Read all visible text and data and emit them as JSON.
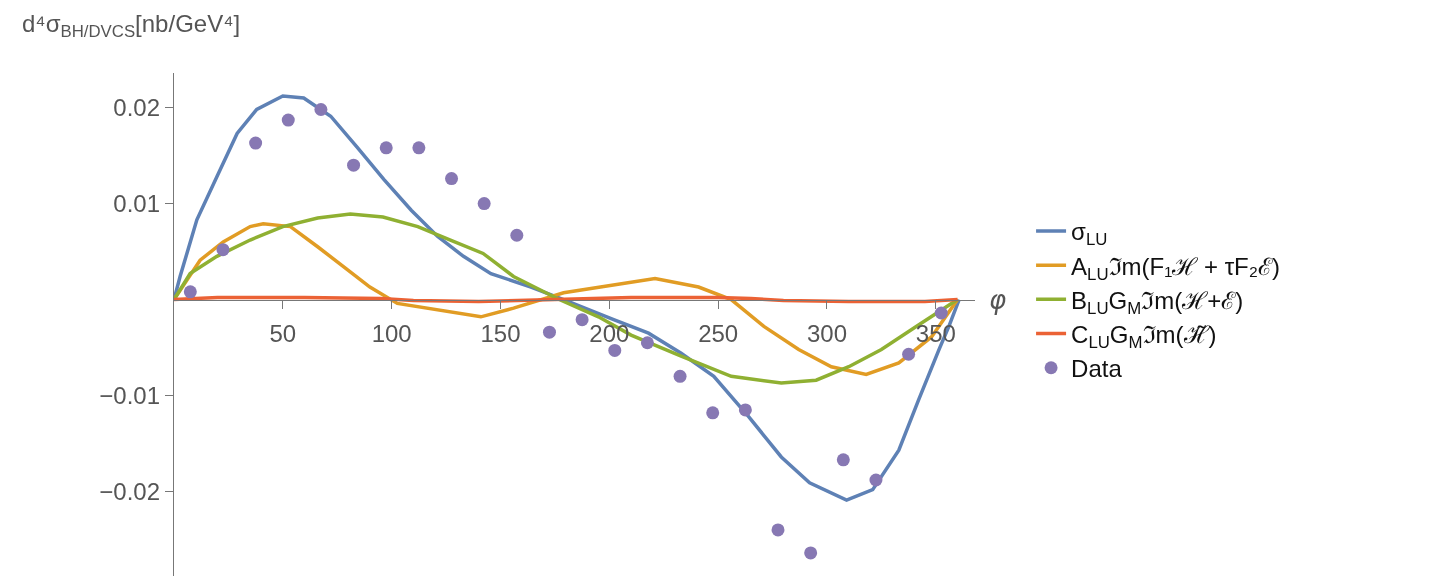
{
  "chart_data": {
    "type": "line",
    "xlabel": "φ",
    "ylabel": "d⁴σ$_{BH/DVCS}$[nb/GeV⁴]",
    "xlim": [
      0,
      368
    ],
    "ylim": [
      -0.0288,
      0.0236
    ],
    "xticks": [
      50,
      100,
      150,
      200,
      250,
      300,
      350
    ],
    "yticks": [
      {
        "value": -0.02,
        "label": "−0.02"
      },
      {
        "value": -0.01,
        "label": "−0.01"
      },
      0.01,
      0.02
    ],
    "grid": false,
    "legend": "right",
    "series": [
      {
        "name": "σ$_{LU}$",
        "color": "#5e81b5",
        "x": [
          0,
          2.8,
          10.5,
          19.7,
          29,
          38,
          50,
          59.6,
          72,
          84,
          96.5,
          109,
          121,
          133,
          145.6,
          164,
          179,
          202,
          218,
          233,
          248,
          264,
          279,
          292,
          309,
          321,
          333,
          342,
          351.5,
          356,
          360.7
        ],
        "values": [
          0,
          0.0024,
          0.0083,
          0.0128,
          0.0173,
          0.0198,
          0.0212,
          0.021,
          0.0191,
          0.0159,
          0.0125,
          0.0093,
          0.0066,
          0.0045,
          0.0027,
          0.0013,
          0,
          -0.0021,
          -0.0035,
          -0.0056,
          -0.008,
          -0.0122,
          -0.0164,
          -0.0191,
          -0.0209,
          -0.0198,
          -0.0157,
          -0.0105,
          -0.0052,
          -0.0028,
          0
        ]
      },
      {
        "name": "A$_{LU}$ℑm(F₁ℋ + τF₂ℰ)",
        "color": "#e19c24",
        "x": [
          0,
          12,
          22.6,
          35,
          41,
          53.5,
          66,
          78,
          90,
          102.6,
          141,
          156,
          179,
          221,
          241,
          256,
          271,
          287,
          302,
          318,
          333,
          348,
          360
        ],
        "values": [
          0,
          0.0041,
          0.006,
          0.0076,
          0.0079,
          0.0076,
          0.0055,
          0.0034,
          0.0013,
          -0.0004,
          -0.0018,
          -0.0009,
          0.0007,
          0.0022,
          0.0013,
          0,
          -0.0028,
          -0.0052,
          -0.007,
          -0.0078,
          -0.0066,
          -0.0039,
          0
        ]
      },
      {
        "name": "B$_{LU}$G$_{M}$ℑm(ℋ+ℰ)",
        "color": "#8fb032",
        "x": [
          0,
          7.4,
          19.7,
          35,
          50,
          66,
          81,
          96,
          112,
          127,
          142,
          156,
          177,
          195,
          210,
          233,
          256,
          279,
          295,
          310,
          325,
          341,
          360
        ],
        "values": [
          0,
          0.0027,
          0.0045,
          0.0062,
          0.0076,
          0.0085,
          0.0089,
          0.0086,
          0.0076,
          0.0062,
          0.0048,
          0.0024,
          0,
          -0.0018,
          -0.0037,
          -0.0059,
          -0.008,
          -0.0087,
          -0.0084,
          -0.007,
          -0.0052,
          -0.0028,
          0
        ]
      },
      {
        "name": "C$_{LU}$G$_{M}$ℑm(ℋ̃)",
        "color": "#eb6235",
        "x": [
          0,
          20,
          60,
          95,
          110,
          140,
          175,
          210,
          250,
          265,
          280,
          310,
          345,
          360
        ],
        "values": [
          0,
          0.0002,
          0.0002,
          0.0001,
          -0.0001,
          -0.0002,
          0,
          0.0002,
          0.0002,
          0.0001,
          -0.0001,
          -0.0002,
          -0.0002,
          0
        ]
      },
      {
        "name": "Data",
        "type": "scatter",
        "color": "#8778b3",
        "x": [
          7.5,
          22.5,
          37.5,
          52.5,
          67.5,
          82.5,
          97.5,
          112.5,
          127.5,
          142.5,
          157.5,
          172.5,
          187.5,
          202.5,
          217.5,
          232.5,
          247.5,
          262.5,
          277.5,
          292.5,
          307.5,
          322.5,
          337.5,
          352.5
        ],
        "values": [
          0.0008,
          0.0052,
          0.0163,
          0.0187,
          0.0198,
          0.014,
          0.0158,
          0.0158,
          0.0126,
          0.01,
          0.0067,
          -0.0034,
          -0.0021,
          -0.0053,
          -0.0045,
          -0.008,
          -0.0118,
          -0.0115,
          -0.024,
          -0.0264,
          -0.0167,
          -0.0188,
          -0.0057,
          -0.0014
        ]
      }
    ]
  }
}
